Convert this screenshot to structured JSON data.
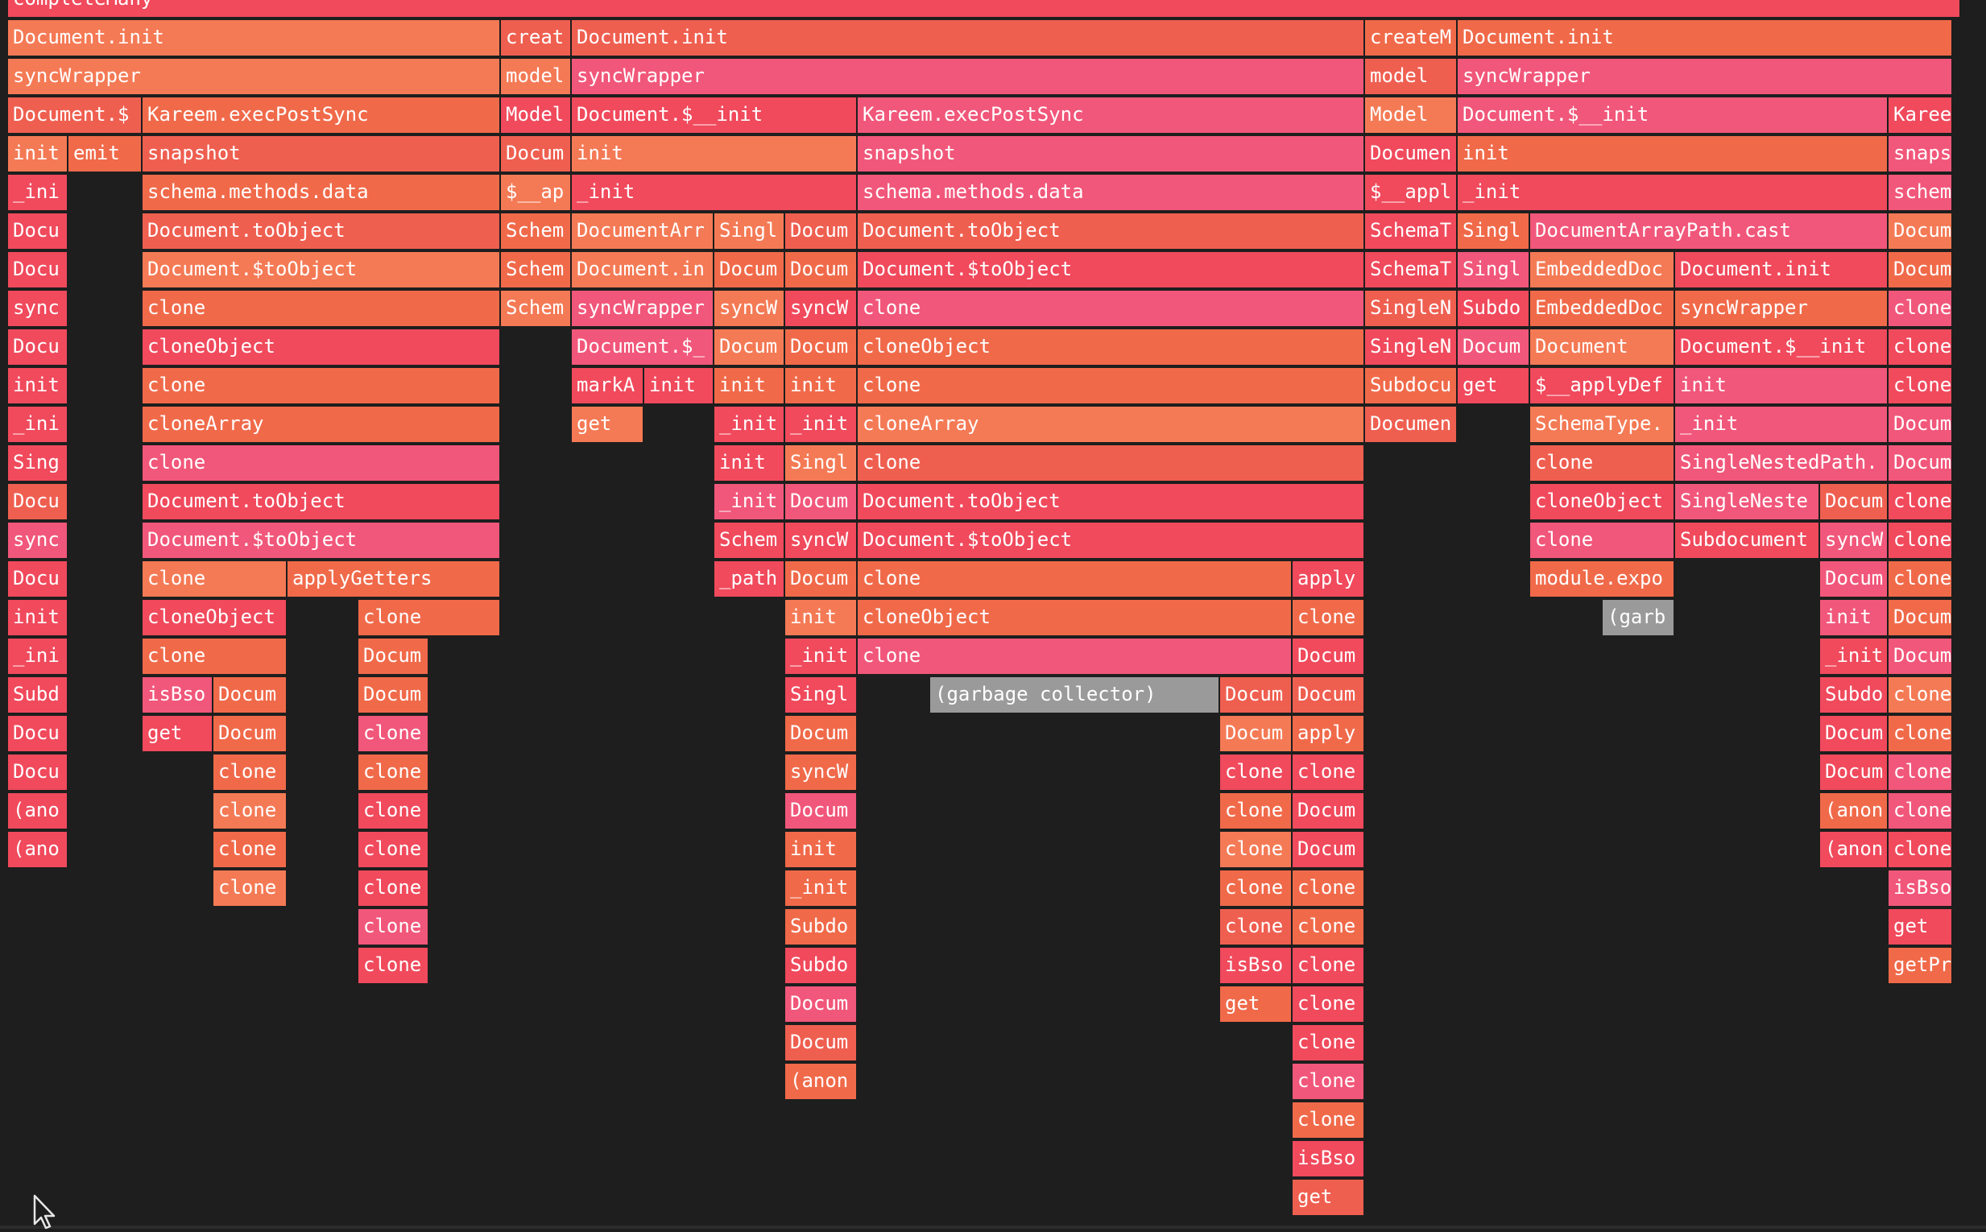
{
  "palette": {
    "a": "#f47a55",
    "b": "#ef5f50",
    "c": "#f06a4a",
    "d": "#f04a5c",
    "e": "#f1577a",
    "gc": "#9a9a9a",
    "background": "#1e1e1e"
  },
  "cursor": {
    "icon": "mouse-pointer-icon"
  },
  "rows": [
    [
      [
        "completeMany",
        "d",
        10,
        2425
      ]
    ],
    [
      [
        "Document.init",
        "a",
        10,
        612
      ],
      [
        "creat",
        "b",
        622,
        88
      ],
      [
        "Document.init",
        "b",
        710,
        985
      ],
      [
        "createM",
        "c",
        1695,
        115
      ],
      [
        "Document.init",
        "c",
        1810,
        615
      ]
    ],
    [
      [
        "syncWrapper",
        "a",
        10,
        612
      ],
      [
        "model",
        "a",
        622,
        88
      ],
      [
        "syncWrapper",
        "e",
        710,
        985
      ],
      [
        "model",
        "b",
        1695,
        115
      ],
      [
        "syncWrapper",
        "e",
        1810,
        615
      ]
    ],
    [
      [
        "Document.$",
        "b",
        10,
        167
      ],
      [
        "Kareem.execPostSync",
        "c",
        177,
        445
      ],
      [
        "Model",
        "d",
        622,
        88
      ],
      [
        "Document.$__init",
        "d",
        710,
        355
      ],
      [
        "Kareem.execPostSync",
        "e",
        1065,
        630
      ],
      [
        "Model",
        "a",
        1695,
        115
      ],
      [
        "Document.$__init",
        "e",
        1810,
        535
      ],
      [
        "Kareem",
        "d",
        2345,
        80
      ]
    ],
    [
      [
        "init",
        "a",
        10,
        75
      ],
      [
        "emit",
        "c",
        85,
        92
      ],
      [
        "snapshot",
        "b",
        177,
        445
      ],
      [
        "Docum",
        "b",
        622,
        88
      ],
      [
        "init",
        "a",
        710,
        355
      ],
      [
        "snapshot",
        "e",
        1065,
        630
      ],
      [
        "Documen",
        "d",
        1695,
        115
      ],
      [
        "init",
        "c",
        1810,
        535
      ],
      [
        "snaps",
        "e",
        2345,
        80
      ]
    ],
    [
      [
        "_ini",
        "d",
        10,
        75
      ],
      [
        "schema.methods.data",
        "c",
        177,
        445
      ],
      [
        "$__ap",
        "a",
        622,
        88
      ],
      [
        "_init",
        "d",
        710,
        355
      ],
      [
        "schema.methods.data",
        "e",
        1065,
        630
      ],
      [
        "$__appl",
        "d",
        1695,
        115
      ],
      [
        "_init",
        "d",
        1810,
        535
      ],
      [
        "schem",
        "e",
        2345,
        80
      ]
    ],
    [
      [
        "Docu",
        "d",
        10,
        75
      ],
      [
        "Document.toObject",
        "b",
        177,
        445
      ],
      [
        "Schem",
        "c",
        622,
        88
      ],
      [
        "DocumentArr",
        "a",
        710,
        177
      ],
      [
        "Singl",
        "a",
        887,
        88
      ],
      [
        "Docum",
        "b",
        975,
        90
      ],
      [
        "Document.toObject",
        "b",
        1065,
        630
      ],
      [
        "SchemaT",
        "d",
        1695,
        115
      ],
      [
        "Singl",
        "c",
        1810,
        90
      ],
      [
        "DocumentArrayPath.cast",
        "e",
        1900,
        445
      ],
      [
        "Docum",
        "a",
        2345,
        80
      ]
    ],
    [
      [
        "Docu",
        "d",
        10,
        75
      ],
      [
        "Document.$toObject",
        "a",
        177,
        445
      ],
      [
        "Schem",
        "c",
        622,
        88
      ],
      [
        "Document.in",
        "a",
        710,
        177
      ],
      [
        "Docum",
        "c",
        887,
        88
      ],
      [
        "Docum",
        "c",
        975,
        90
      ],
      [
        "Document.$toObject",
        "d",
        1065,
        630
      ],
      [
        "SchemaT",
        "d",
        1695,
        115
      ],
      [
        "Singl",
        "e",
        1810,
        90
      ],
      [
        "EmbeddedDoc",
        "a",
        1900,
        180
      ],
      [
        "Document.init",
        "d",
        2080,
        265
      ],
      [
        "Docum",
        "c",
        2345,
        80
      ]
    ],
    [
      [
        "sync",
        "d",
        10,
        75
      ],
      [
        "clone",
        "c",
        177,
        445
      ],
      [
        "Schem",
        "a",
        622,
        88
      ],
      [
        "syncWrapper",
        "e",
        710,
        177
      ],
      [
        "syncW",
        "a",
        887,
        88
      ],
      [
        "syncW",
        "d",
        975,
        90
      ],
      [
        "clone",
        "e",
        1065,
        630
      ],
      [
        "SingleN",
        "b",
        1695,
        115
      ],
      [
        "Subdo",
        "d",
        1810,
        90
      ],
      [
        "EmbeddedDoc",
        "c",
        1900,
        180
      ],
      [
        "syncWrapper",
        "c",
        2080,
        265
      ],
      [
        "clone",
        "e",
        2345,
        80
      ]
    ],
    [
      [
        "Docu",
        "d",
        10,
        75
      ],
      [
        "cloneObject",
        "d",
        177,
        445
      ],
      [
        "Document.$_",
        "e",
        710,
        177
      ],
      [
        "Docum",
        "a",
        887,
        88
      ],
      [
        "Docum",
        "c",
        975,
        90
      ],
      [
        "cloneObject",
        "c",
        1065,
        630
      ],
      [
        "SingleN",
        "d",
        1695,
        115
      ],
      [
        "Docum",
        "e",
        1810,
        90
      ],
      [
        "Document",
        "a",
        1900,
        180
      ],
      [
        "Document.$__init",
        "d",
        2080,
        265
      ],
      [
        "clone",
        "d",
        2345,
        80
      ]
    ],
    [
      [
        "init",
        "d",
        10,
        75
      ],
      [
        "clone",
        "c",
        177,
        445
      ],
      [
        "markA",
        "d",
        710,
        90
      ],
      [
        "init",
        "d",
        800,
        87
      ],
      [
        "init",
        "c",
        887,
        88
      ],
      [
        "init",
        "c",
        975,
        90
      ],
      [
        "clone",
        "c",
        1065,
        630
      ],
      [
        "Subdocu",
        "c",
        1695,
        115
      ],
      [
        "get",
        "d",
        1810,
        90
      ],
      [
        "$__applyDef",
        "d",
        1900,
        180
      ],
      [
        "init",
        "e",
        2080,
        265
      ],
      [
        "clone",
        "d",
        2345,
        80
      ]
    ],
    [
      [
        "_ini",
        "d",
        10,
        75
      ],
      [
        "cloneArray",
        "c",
        177,
        445
      ],
      [
        "get",
        "a",
        710,
        90
      ],
      [
        "_init",
        "d",
        887,
        88
      ],
      [
        "_init",
        "d",
        975,
        90
      ],
      [
        "cloneArray",
        "a",
        1065,
        630
      ],
      [
        "Documen",
        "b",
        1695,
        115
      ],
      [
        "SchemaType.",
        "a",
        1900,
        180
      ],
      [
        "_init",
        "e",
        2080,
        265
      ],
      [
        "Docum",
        "e",
        2345,
        80
      ]
    ],
    [
      [
        "Sing",
        "d",
        10,
        75
      ],
      [
        "clone",
        "e",
        177,
        445
      ],
      [
        "init",
        "d",
        887,
        88
      ],
      [
        "Singl",
        "a",
        975,
        90
      ],
      [
        "clone",
        "b",
        1065,
        630
      ],
      [
        "clone",
        "b",
        1900,
        180
      ],
      [
        "SingleNestedPath.",
        "e",
        2080,
        265
      ],
      [
        "Docum",
        "e",
        2345,
        80
      ]
    ],
    [
      [
        "Docu",
        "b",
        10,
        75
      ],
      [
        "Document.toObject",
        "d",
        177,
        445
      ],
      [
        "_init",
        "e",
        887,
        88
      ],
      [
        "Docum",
        "e",
        975,
        90
      ],
      [
        "Document.toObject",
        "d",
        1065,
        630
      ],
      [
        "cloneObject",
        "d",
        1900,
        180
      ],
      [
        "SingleNeste",
        "e",
        2080,
        180
      ],
      [
        "Docum",
        "b",
        2260,
        85
      ],
      [
        "clone",
        "d",
        2345,
        80
      ]
    ],
    [
      [
        "sync",
        "e",
        10,
        75
      ],
      [
        "Document.$toObject",
        "e",
        177,
        445
      ],
      [
        "Schem",
        "d",
        887,
        88
      ],
      [
        "syncW",
        "d",
        975,
        90
      ],
      [
        "Document.$toObject",
        "d",
        1065,
        630
      ],
      [
        "clone",
        "e",
        1900,
        180
      ],
      [
        "Subdocument",
        "d",
        2080,
        180
      ],
      [
        "syncW",
        "e",
        2260,
        85
      ],
      [
        "clone",
        "d",
        2345,
        80
      ]
    ],
    [
      [
        "Docu",
        "d",
        10,
        75
      ],
      [
        "clone",
        "a",
        177,
        180
      ],
      [
        "applyGetters",
        "c",
        357,
        265
      ],
      [
        "_path",
        "d",
        887,
        88
      ],
      [
        "Docum",
        "c",
        975,
        90
      ],
      [
        "clone",
        "c",
        1065,
        540
      ],
      [
        "apply",
        "d",
        1605,
        90
      ],
      [
        "module.expo",
        "c",
        1900,
        180
      ],
      [
        "Docum",
        "e",
        2260,
        85
      ],
      [
        "clone",
        "c",
        2345,
        80
      ]
    ],
    [
      [
        "init",
        "d",
        10,
        75
      ],
      [
        "cloneObject",
        "d",
        177,
        180
      ],
      [
        "clone",
        "c",
        445,
        177
      ],
      [
        "init",
        "a",
        975,
        90
      ],
      [
        "cloneObject",
        "c",
        1065,
        540
      ],
      [
        "clone",
        "c",
        1605,
        90
      ],
      [
        "(garb",
        "gc",
        1990,
        90
      ],
      [
        "init",
        "e",
        2260,
        85
      ],
      [
        "Docum",
        "c",
        2345,
        80
      ]
    ],
    [
      [
        "_ini",
        "d",
        10,
        75
      ],
      [
        "clone",
        "c",
        177,
        180
      ],
      [
        "Docum",
        "c",
        445,
        88
      ],
      [
        "_init",
        "d",
        975,
        90
      ],
      [
        "clone",
        "e",
        1065,
        540
      ],
      [
        "Docum",
        "d",
        1605,
        90
      ],
      [
        "_init",
        "d",
        2260,
        85
      ],
      [
        "Docum",
        "e",
        2345,
        80
      ]
    ],
    [
      [
        "Subd",
        "d",
        10,
        75
      ],
      [
        "isBso",
        "e",
        177,
        88
      ],
      [
        "Docum",
        "c",
        265,
        92
      ],
      [
        "Docum",
        "c",
        445,
        88
      ],
      [
        "Singl",
        "d",
        975,
        90
      ],
      [
        "(garbage collector)",
        "gc",
        1155,
        360
      ],
      [
        "Docum",
        "b",
        1515,
        90
      ],
      [
        "Docum",
        "b",
        1605,
        90
      ],
      [
        "Subdo",
        "d",
        2260,
        85
      ],
      [
        "clone",
        "a",
        2345,
        80
      ]
    ],
    [
      [
        "Docu",
        "d",
        10,
        75
      ],
      [
        "get",
        "d",
        177,
        88
      ],
      [
        "Docum",
        "c",
        265,
        92
      ],
      [
        "clone",
        "e",
        445,
        88
      ],
      [
        "Docum",
        "c",
        975,
        90
      ],
      [
        "Docum",
        "a",
        1515,
        90
      ],
      [
        "apply",
        "c",
        1605,
        90
      ],
      [
        "Docum",
        "d",
        2260,
        85
      ],
      [
        "clone",
        "c",
        2345,
        80
      ]
    ],
    [
      [
        "Docu",
        "d",
        10,
        75
      ],
      [
        "clone",
        "c",
        265,
        92
      ],
      [
        "clone",
        "c",
        445,
        88
      ],
      [
        "syncW",
        "c",
        975,
        90
      ],
      [
        "clone",
        "d",
        1515,
        90
      ],
      [
        "clone",
        "d",
        1605,
        90
      ],
      [
        "Docum",
        "d",
        2260,
        85
      ],
      [
        "clone",
        "e",
        2345,
        80
      ]
    ],
    [
      [
        "(ano",
        "d",
        10,
        75
      ],
      [
        "clone",
        "a",
        265,
        92
      ],
      [
        "clone",
        "d",
        445,
        88
      ],
      [
        "Docum",
        "e",
        975,
        90
      ],
      [
        "clone",
        "c",
        1515,
        90
      ],
      [
        "Docum",
        "d",
        1605,
        90
      ],
      [
        "(anon",
        "c",
        2260,
        85
      ],
      [
        "clone",
        "e",
        2345,
        80
      ]
    ],
    [
      [
        "(ano",
        "d",
        10,
        75
      ],
      [
        "clone",
        "c",
        265,
        92
      ],
      [
        "clone",
        "d",
        445,
        88
      ],
      [
        "init",
        "c",
        975,
        90
      ],
      [
        "clone",
        "a",
        1515,
        90
      ],
      [
        "Docum",
        "d",
        1605,
        90
      ],
      [
        "(anon",
        "d",
        2260,
        85
      ],
      [
        "clone",
        "d",
        2345,
        80
      ]
    ],
    [
      [
        "clone",
        "a",
        265,
        92
      ],
      [
        "clone",
        "d",
        445,
        88
      ],
      [
        "_init",
        "c",
        975,
        90
      ],
      [
        "clone",
        "c",
        1515,
        90
      ],
      [
        "clone",
        "c",
        1605,
        90
      ],
      [
        "isBso",
        "e",
        2345,
        80
      ]
    ],
    [
      [
        "clone",
        "e",
        445,
        88
      ],
      [
        "Subdo",
        "c",
        975,
        90
      ],
      [
        "clone",
        "b",
        1515,
        90
      ],
      [
        "clone",
        "c",
        1605,
        90
      ],
      [
        "get",
        "d",
        2345,
        80
      ]
    ],
    [
      [
        "clone",
        "d",
        445,
        88
      ],
      [
        "Subdo",
        "d",
        975,
        90
      ],
      [
        "isBso",
        "d",
        1515,
        90
      ],
      [
        "clone",
        "d",
        1605,
        90
      ],
      [
        "getPr",
        "c",
        2345,
        80
      ]
    ],
    [
      [
        "Docum",
        "e",
        975,
        90
      ],
      [
        "get",
        "c",
        1515,
        90
      ],
      [
        "clone",
        "d",
        1605,
        90
      ]
    ],
    [
      [
        "Docum",
        "b",
        975,
        90
      ],
      [
        "clone",
        "d",
        1605,
        90
      ]
    ],
    [
      [
        "(anon",
        "c",
        975,
        90
      ],
      [
        "clone",
        "e",
        1605,
        90
      ]
    ],
    [
      [
        "clone",
        "c",
        1605,
        90
      ]
    ],
    [
      [
        "isBso",
        "d",
        1605,
        90
      ]
    ],
    [
      [
        "get",
        "b",
        1605,
        90
      ]
    ]
  ]
}
